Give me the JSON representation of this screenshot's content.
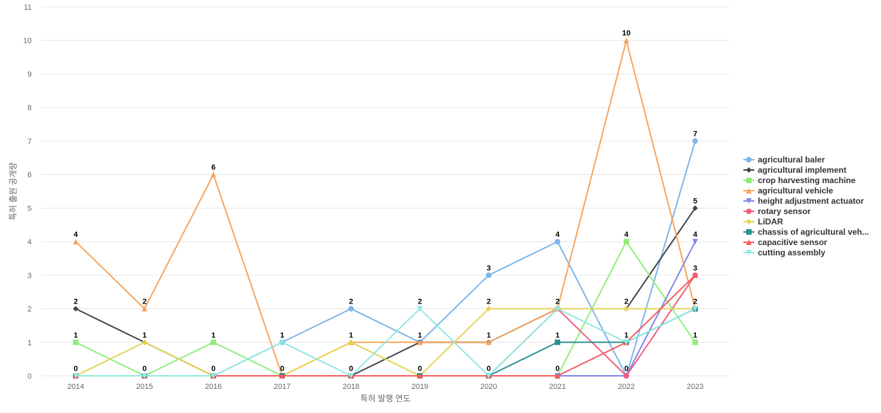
{
  "chart_data": {
    "type": "line",
    "xlabel": "특허 발행 연도",
    "ylabel": "특허 출원 공개량",
    "ylim": [
      0,
      11
    ],
    "yticks": [
      0,
      1,
      2,
      3,
      4,
      5,
      6,
      7,
      8,
      9,
      10,
      11
    ],
    "grid": true,
    "legend_position": "right",
    "categories": [
      "2014",
      "2015",
      "2016",
      "2017",
      "2018",
      "2019",
      "2020",
      "2021",
      "2022",
      "2023"
    ],
    "series": [
      {
        "name": "agricultural baler",
        "color": "#7cb5ec",
        "marker": "circle",
        "values": [
          0,
          0,
          0,
          1,
          2,
          1,
          3,
          4,
          0,
          7
        ]
      },
      {
        "name": "agricultural implement",
        "color": "#434348",
        "marker": "diamond",
        "values": [
          2,
          1,
          0,
          0,
          0,
          1,
          1,
          2,
          2,
          5
        ]
      },
      {
        "name": "crop harvesting machine",
        "color": "#90ed7d",
        "marker": "square",
        "values": [
          1,
          0,
          1,
          0,
          0,
          0,
          0,
          0,
          4,
          1
        ]
      },
      {
        "name": "agricultural vehicle",
        "color": "#f7a35c",
        "marker": "triangle",
        "values": [
          4,
          2,
          6,
          0,
          1,
          1,
          1,
          2,
          10,
          2
        ]
      },
      {
        "name": "height adjustment actuator",
        "color": "#8085e9",
        "marker": "triangle-down",
        "values": [
          0,
          0,
          0,
          0,
          0,
          0,
          0,
          0,
          0,
          4
        ]
      },
      {
        "name": "rotary sensor",
        "color": "#f15c80",
        "marker": "circle",
        "values": [
          0,
          0,
          0,
          0,
          0,
          0,
          0,
          2,
          0,
          3
        ]
      },
      {
        "name": "LiDAR",
        "color": "#e4d354",
        "marker": "diamond",
        "values": [
          0,
          1,
          0,
          0,
          1,
          0,
          2,
          2,
          2,
          2
        ]
      },
      {
        "name": "chassis of agricultural veh...",
        "color": "#2b908f",
        "marker": "square",
        "values": [
          0,
          0,
          0,
          0,
          0,
          0,
          0,
          1,
          1,
          2
        ]
      },
      {
        "name": "capacitive sensor",
        "color": "#f45b5b",
        "marker": "triangle",
        "values": [
          0,
          0,
          0,
          0,
          0,
          0,
          0,
          0,
          1,
          3
        ]
      },
      {
        "name": "cutting assembly",
        "color": "#91e8e1",
        "marker": "triangle-down",
        "values": [
          0,
          0,
          0,
          1,
          0,
          2,
          0,
          2,
          1,
          2
        ]
      }
    ],
    "data_labels": [
      {
        "x": "2014",
        "texts": [
          "4",
          "2",
          "1",
          "0"
        ]
      },
      {
        "x": "2015",
        "texts": [
          "2",
          "1",
          "0"
        ]
      },
      {
        "x": "2016",
        "texts": [
          "6",
          "1",
          "0"
        ]
      },
      {
        "x": "2017",
        "texts": [
          "1",
          "0"
        ]
      },
      {
        "x": "2018",
        "texts": [
          "2",
          "1",
          "0"
        ]
      },
      {
        "x": "2019",
        "texts": [
          "2",
          "1",
          "0"
        ]
      },
      {
        "x": "2020",
        "texts": [
          "3",
          "2",
          "1",
          "0"
        ]
      },
      {
        "x": "2021",
        "texts": [
          "4",
          "2",
          "1",
          "0"
        ]
      },
      {
        "x": "2022",
        "texts": [
          "10",
          "4",
          "2",
          "1",
          "0"
        ]
      },
      {
        "x": "2023",
        "texts": [
          "7",
          "5",
          "4",
          "3",
          "2",
          "1"
        ]
      }
    ]
  }
}
